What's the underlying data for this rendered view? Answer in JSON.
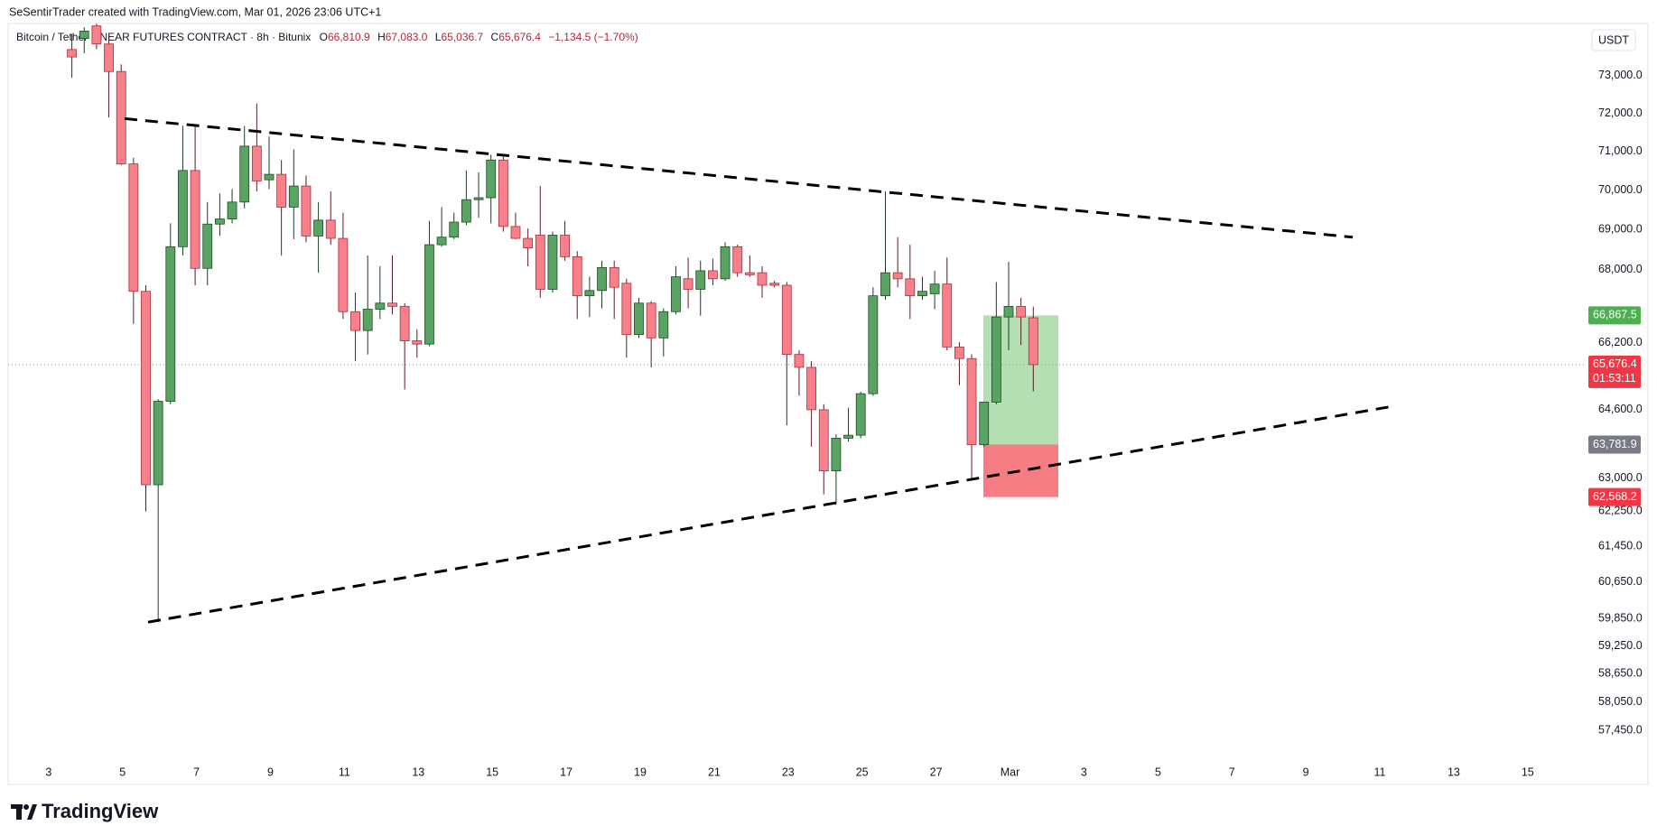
{
  "header": {
    "credit": "SeSentirTrader created with TradingView.com, Mar 01, 2026 23:06 UTC+1",
    "symbol": "Bitcoin / Tether LINEAR FUTURES CONTRACT · 8h · Bitunix",
    "ohlc": [
      {
        "key": "O",
        "value": "66,810.9"
      },
      {
        "key": "H",
        "value": "67,083.0"
      },
      {
        "key": "L",
        "value": "65,036.7"
      },
      {
        "key": "C",
        "value": "65,676.4"
      }
    ],
    "change": "−1,134.5 (−1.70%)"
  },
  "chart_data": {
    "type": "candlestick",
    "currency": "USDT",
    "log_scale": true,
    "up_color": "#5aa463",
    "down_color": "#f7808b",
    "ylim": [
      56890,
      74320
    ],
    "yticks": [
      {
        "value": 73000,
        "label": "73,000.0"
      },
      {
        "value": 72000,
        "label": "72,000.0"
      },
      {
        "value": 71000,
        "label": "71,000.0"
      },
      {
        "value": 70000,
        "label": "70,000.0"
      },
      {
        "value": 69000,
        "label": "69,000.0"
      },
      {
        "value": 68000,
        "label": "68,000.0"
      },
      {
        "value": 66200,
        "label": "66,200.0"
      },
      {
        "value": 64600,
        "label": "64,600.0"
      },
      {
        "value": 63000,
        "label": "63,000.0"
      },
      {
        "value": 62250,
        "label": "62,250.0"
      },
      {
        "value": 61450,
        "label": "61,450.0"
      },
      {
        "value": 60650,
        "label": "60,650.0"
      },
      {
        "value": 59850,
        "label": "59,850.0"
      },
      {
        "value": 59250,
        "label": "59,250.0"
      },
      {
        "value": 58650,
        "label": "58,650.0"
      },
      {
        "value": 58050,
        "label": "58,050.0"
      },
      {
        "value": 57450,
        "label": "57,450.0"
      }
    ],
    "xticks": [
      "3",
      "5",
      "7",
      "9",
      "11",
      "13",
      "15",
      "17",
      "19",
      "21",
      "23",
      "25",
      "27",
      "Mar",
      "3",
      "5",
      "7",
      "9",
      "11",
      "13",
      "15"
    ],
    "open": [
      73700,
      74000,
      74340,
      73850,
      73110,
      70680,
      67460,
      62850,
      64800,
      68570,
      70510,
      68030,
      69140,
      69270,
      69700,
      71140,
      70270,
      70410,
      69570,
      70110,
      68840,
      69240,
      68780,
      66960,
      66500,
      67020,
      67170,
      67090,
      66250,
      66170,
      68620,
      68810,
      69190,
      69760,
      69810,
      70780,
      69080,
      68780,
      68860,
      67510,
      68860,
      68320,
      67350,
      67480,
      68050,
      67660,
      66400,
      67170,
      66320,
      66960,
      67770,
      67510,
      67970,
      67770,
      68570,
      67920,
      67920,
      67660,
      67610,
      65920,
      65610,
      64600,
      63170,
      63930,
      64000,
      64980,
      67350,
      67920,
      67770,
      67350,
      67400,
      67640,
      66100,
      65820,
      63780,
      64780,
      66830,
      67090,
      66810.9
    ],
    "high": [
      74120,
      74300,
      74400,
      74040,
      73300,
      70840,
      67610,
      64850,
      69160,
      71670,
      71670,
      69700,
      69920,
      70030,
      71670,
      72260,
      71390,
      70780,
      71060,
      70380,
      69700,
      69970,
      69430,
      67430,
      68350,
      68080,
      68350,
      67170,
      66530,
      69220,
      69570,
      69430,
      70510,
      70460,
      70920,
      70920,
      69430,
      69030,
      70110,
      68950,
      69220,
      68460,
      67820,
      68220,
      68220,
      67770,
      67300,
      67220,
      67040,
      68080,
      68300,
      68220,
      68270,
      68680,
      68620,
      68350,
      68080,
      67720,
      67690,
      66020,
      65760,
      64730,
      64020,
      64650,
      65030,
      67560,
      69970,
      68810,
      68620,
      67820,
      67970,
      68300,
      66220,
      65920,
      64780,
      67690,
      68190,
      67300,
      67083.0
    ],
    "low": [
      72940,
      73600,
      73710,
      71890,
      70650,
      66660,
      62240,
      59770,
      64730,
      68350,
      67610,
      67610,
      68840,
      69160,
      69540,
      69970,
      70030,
      68350,
      68760,
      68680,
      67920,
      68620,
      66780,
      65760,
      65920,
      66780,
      66890,
      65080,
      65840,
      66120,
      68570,
      68760,
      69110,
      69300,
      69160,
      68950,
      68760,
      68080,
      67300,
      67430,
      68220,
      66780,
      66830,
      67040,
      66780,
      65840,
      66320,
      65610,
      65870,
      66890,
      67040,
      66860,
      67610,
      67720,
      67820,
      67820,
      67300,
      67560,
      64230,
      64930,
      63730,
      62630,
      62390,
      63850,
      63930,
      64930,
      67250,
      67560,
      66780,
      67250,
      67020,
      66020,
      65180,
      62950,
      63730,
      64730,
      66020,
      66150,
      65036.7
    ],
    "close": [
      73500,
      74200,
      73850,
      73110,
      70680,
      67460,
      62850,
      64800,
      68570,
      70510,
      68030,
      69140,
      69270,
      69700,
      71140,
      70240,
      70410,
      69570,
      70110,
      68840,
      69240,
      68780,
      66960,
      66500,
      67020,
      67170,
      67090,
      66250,
      66170,
      68620,
      68810,
      69190,
      69760,
      69810,
      70780,
      69080,
      68780,
      68540,
      67510,
      68860,
      68320,
      67350,
      67480,
      68050,
      67560,
      66400,
      67170,
      66320,
      66960,
      67820,
      67510,
      67970,
      67770,
      68570,
      67920,
      67870,
      67610,
      67610,
      65920,
      65610,
      64600,
      63170,
      63930,
      64000,
      64980,
      67350,
      67920,
      67770,
      67350,
      67460,
      67640,
      66100,
      65820,
      63780,
      64780,
      66830,
      67090,
      66830,
      65676.4
    ],
    "last_price": {
      "value": 65676.4,
      "label": "65,676.4",
      "countdown": "01:53:11"
    },
    "trendlines": [
      {
        "y": [
          71860,
          68810
        ]
      },
      {
        "y": [
          59770,
          64680
        ]
      }
    ],
    "position": {
      "target": {
        "value": 66867.5,
        "label": "66,867.5"
      },
      "entry": {
        "value": 63781.9,
        "label": "63,781.9"
      },
      "stop": {
        "value": 62568.2,
        "label": "62,568.2"
      }
    }
  },
  "footer": {
    "logo": "TradingView"
  }
}
